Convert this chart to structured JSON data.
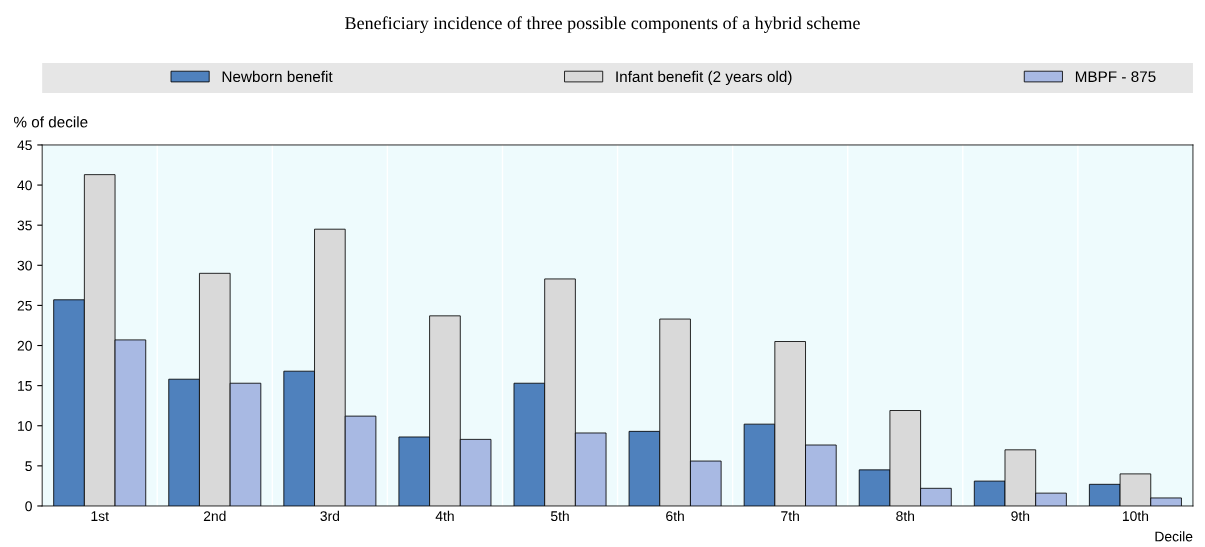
{
  "chart_data": {
    "type": "bar",
    "title": "Beneficiary incidence of three possible components of a hybrid scheme",
    "ylabel": "% of decile",
    "xlabel": "Decile",
    "categories": [
      "1st",
      "2nd",
      "3rd",
      "4th",
      "5th",
      "6th",
      "7th",
      "8th",
      "9th",
      "10th"
    ],
    "series": [
      {
        "name": "Newborn benefit",
        "color": "#4f81bd",
        "values": [
          25.7,
          15.8,
          16.8,
          8.6,
          15.3,
          9.3,
          10.2,
          4.5,
          3.1,
          2.7
        ]
      },
      {
        "name": "Infant benefit (2 years old)",
        "color": "#d9d9d9",
        "values": [
          41.3,
          29.0,
          34.5,
          23.7,
          28.3,
          23.3,
          20.5,
          11.9,
          7.0,
          4.0
        ]
      },
      {
        "name": "MBPF - 875",
        "color": "#a8b9e3",
        "values": [
          20.7,
          15.3,
          11.2,
          8.3,
          9.1,
          5.6,
          7.6,
          2.2,
          1.6,
          1.0
        ]
      }
    ],
    "ylim": [
      0,
      45
    ],
    "yticks": [
      0,
      5,
      10,
      15,
      20,
      25,
      30,
      35,
      40,
      45
    ],
    "legend": "top"
  }
}
